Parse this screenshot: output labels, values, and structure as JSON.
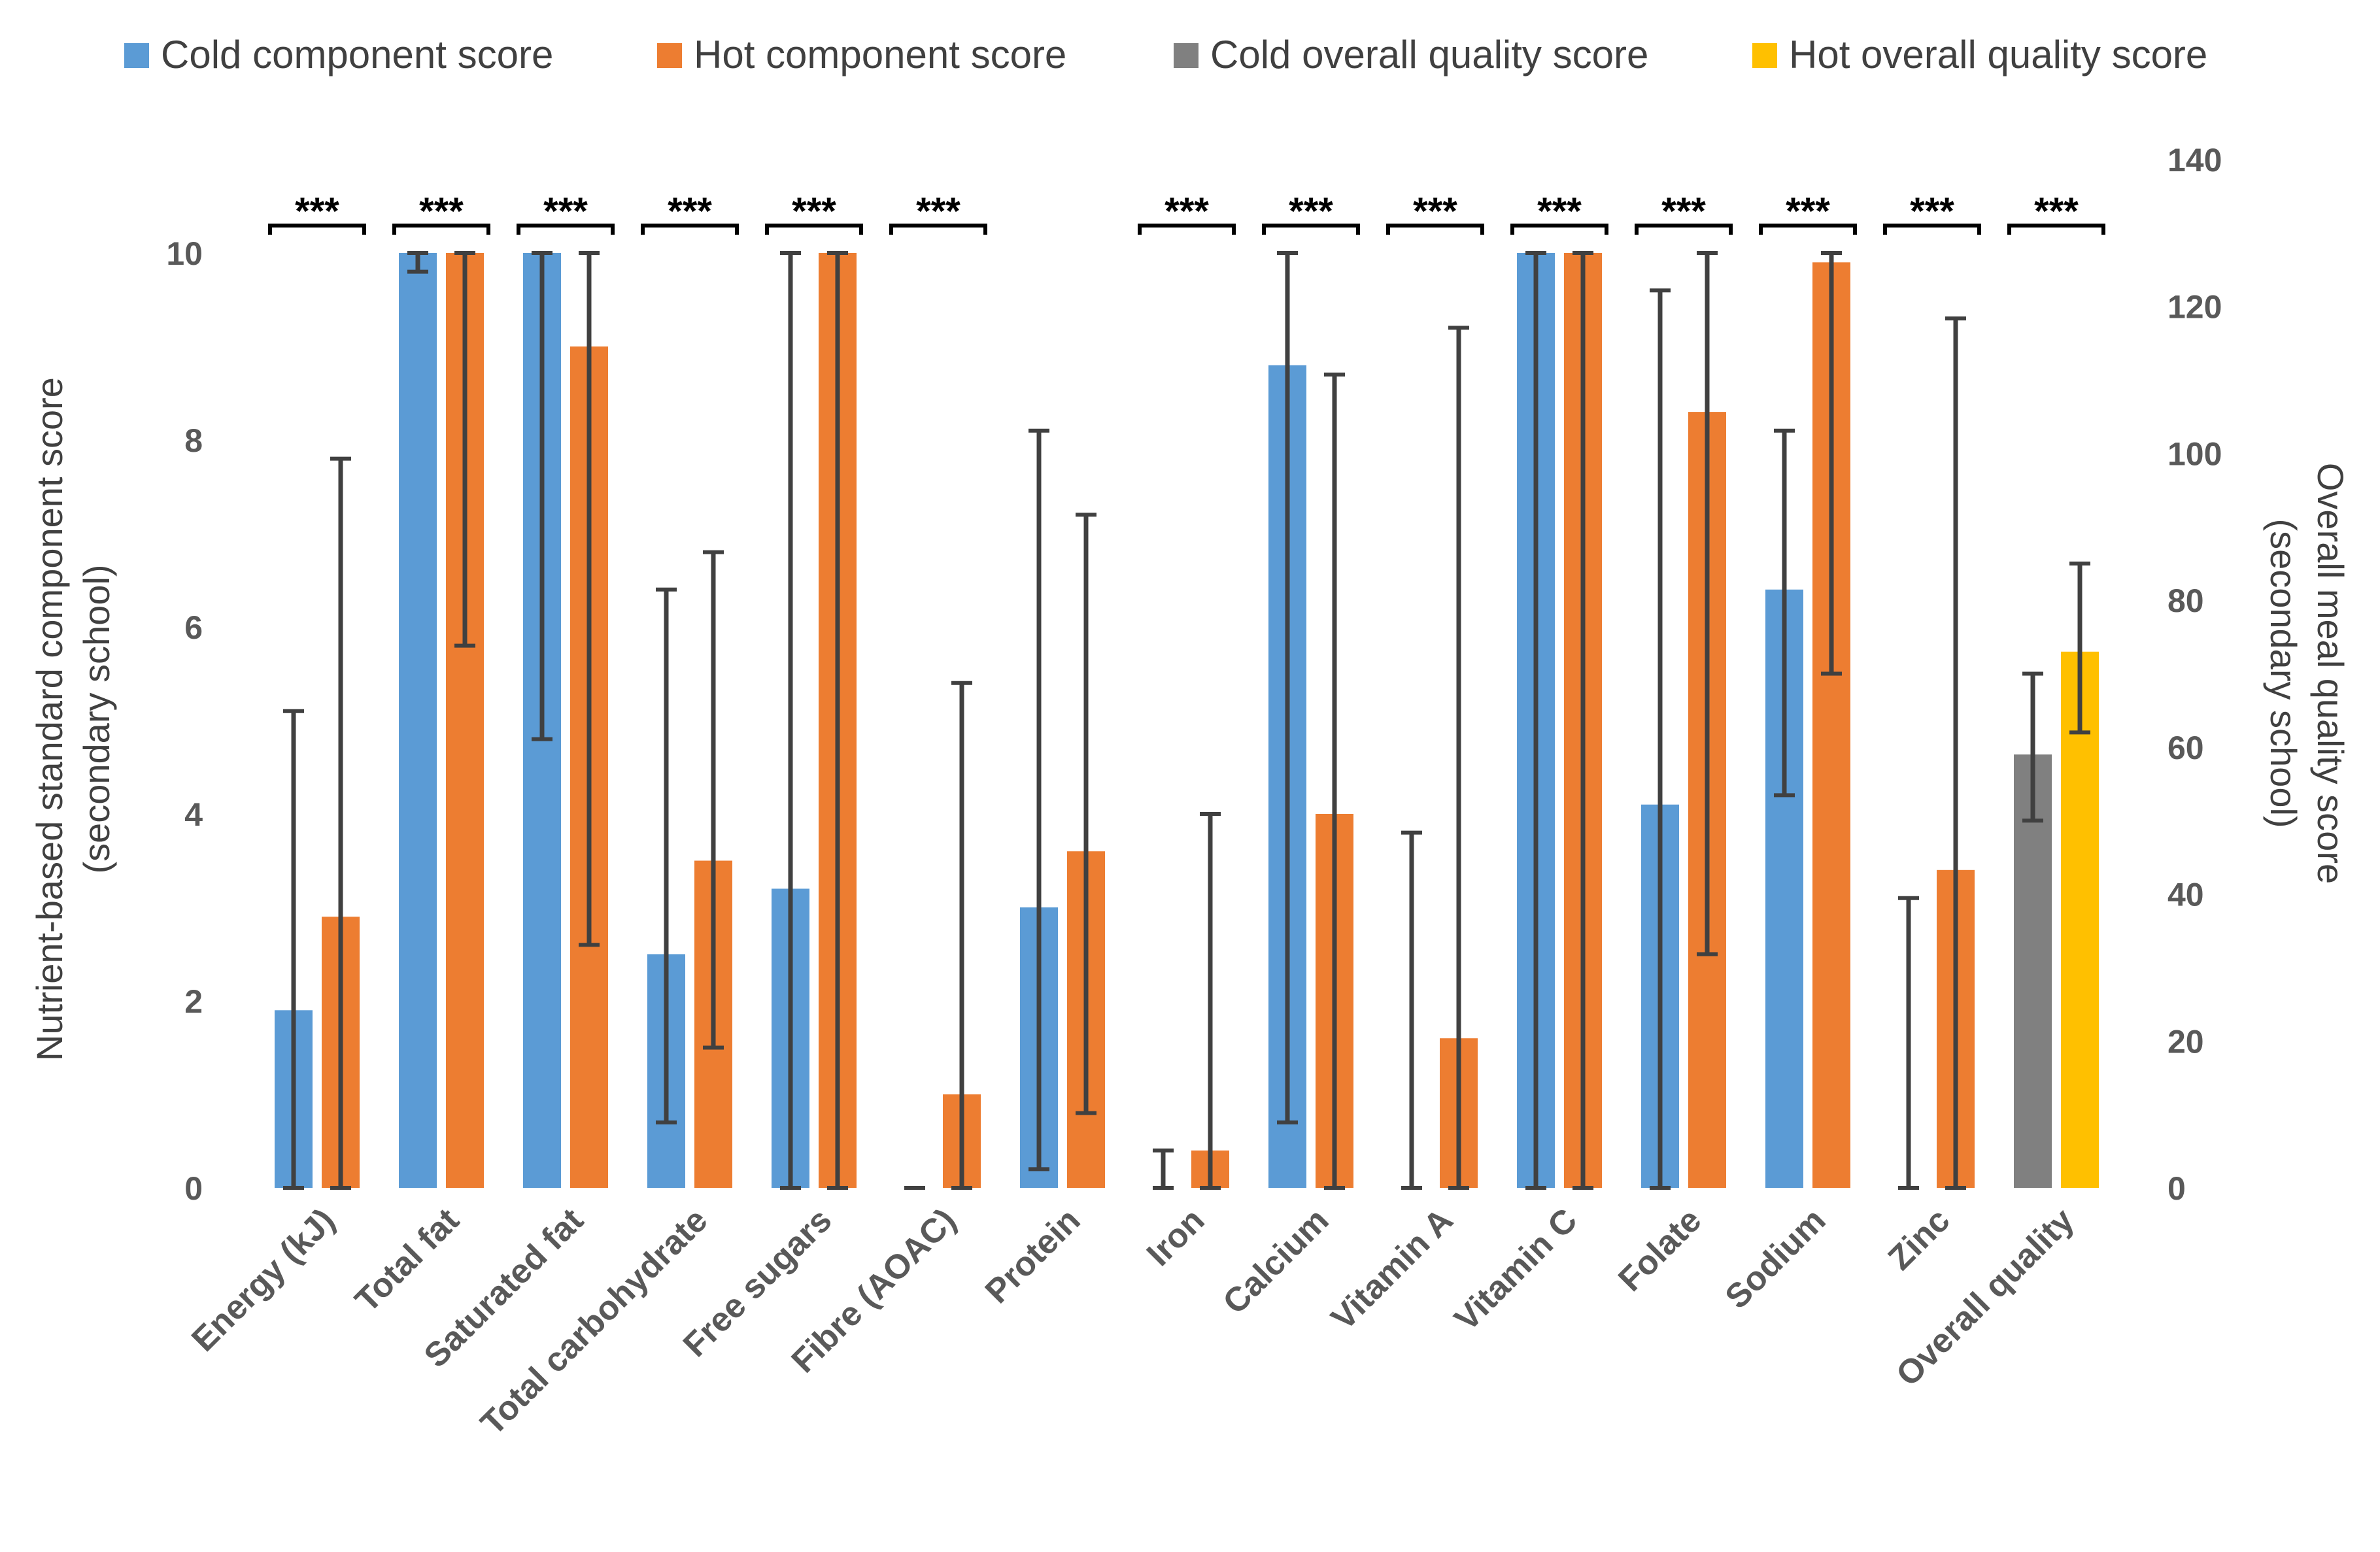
{
  "chart_data": {
    "type": "bar",
    "categories": [
      "Energy (kJ)",
      "Total fat",
      "Saturated fat",
      "Total carbohydrate",
      "Free sugars",
      "Fibre (AOAC)",
      "Protein",
      "Iron",
      "Calcium",
      "Vitamin A",
      "Vitamin C",
      "Folate",
      "Sodium",
      "Zinc",
      "Overall quality"
    ],
    "series": [
      {
        "name": "Cold component score",
        "color": "#5B9BD5",
        "axis": "left",
        "values": [
          1.9,
          10.0,
          10.0,
          2.5,
          3.2,
          0.0,
          3.0,
          0.0,
          8.8,
          0.0,
          10.0,
          4.1,
          6.4,
          0.0,
          null
        ],
        "err_low": [
          0.0,
          9.8,
          4.8,
          0.7,
          0.0,
          0.0,
          0.2,
          0.0,
          0.7,
          0.0,
          0.0,
          0.0,
          4.2,
          0.0,
          null
        ],
        "err_high": [
          5.1,
          10.0,
          10.0,
          6.4,
          10.0,
          0.0,
          8.1,
          0.4,
          10.0,
          3.8,
          10.0,
          9.6,
          8.1,
          3.1,
          null
        ]
      },
      {
        "name": "Hot component score",
        "color": "#ED7D31",
        "axis": "left",
        "values": [
          2.9,
          10.0,
          9.0,
          3.5,
          10.0,
          1.0,
          3.6,
          0.4,
          4.0,
          1.6,
          10.0,
          8.3,
          9.9,
          3.4,
          null
        ],
        "err_low": [
          0.0,
          5.8,
          2.6,
          1.5,
          0.0,
          0.0,
          0.8,
          0.0,
          0.0,
          0.0,
          0.0,
          2.5,
          5.5,
          0.0,
          null
        ],
        "err_high": [
          7.8,
          10.0,
          10.0,
          6.8,
          10.0,
          5.4,
          7.2,
          4.0,
          8.7,
          9.2,
          10.0,
          10.0,
          10.0,
          9.3,
          null
        ]
      },
      {
        "name": "Cold overall quality score",
        "color": "#808080",
        "axis": "right",
        "values": [
          null,
          null,
          null,
          null,
          null,
          null,
          null,
          null,
          null,
          null,
          null,
          null,
          null,
          null,
          59
        ],
        "err_low": [
          null,
          null,
          null,
          null,
          null,
          null,
          null,
          null,
          null,
          null,
          null,
          null,
          null,
          null,
          50
        ],
        "err_high": [
          null,
          null,
          null,
          null,
          null,
          null,
          null,
          null,
          null,
          null,
          null,
          null,
          null,
          null,
          70
        ]
      },
      {
        "name": "Hot overall quality score",
        "color": "#FFC000",
        "axis": "right",
        "values": [
          null,
          null,
          null,
          null,
          null,
          null,
          null,
          null,
          null,
          null,
          null,
          null,
          null,
          null,
          73
        ],
        "err_low": [
          null,
          null,
          null,
          null,
          null,
          null,
          null,
          null,
          null,
          null,
          null,
          null,
          null,
          null,
          62
        ],
        "err_high": [
          null,
          null,
          null,
          null,
          null,
          null,
          null,
          null,
          null,
          null,
          null,
          null,
          null,
          null,
          85
        ]
      }
    ],
    "significance": [
      "***",
      "***",
      "***",
      "***",
      "***",
      "***",
      "",
      "***",
      "***",
      "***",
      "***",
      "***",
      "***",
      "***",
      "***"
    ],
    "ylabel": "Nutrient-based standard component score (secondary school)",
    "ylabel_lines": [
      "Nutrient-based standard component score",
      "(secondary school)"
    ],
    "y2label": "Overall meal quality score (secondary school)",
    "y2label_lines": [
      "Overall meal quality score",
      "(secondary school)"
    ],
    "ylim": [
      0,
      11
    ],
    "y2lim": [
      0,
      140
    ],
    "yticks": [
      "0",
      "2",
      "4",
      "6",
      "8",
      "10"
    ],
    "y2ticks": [
      "0",
      "20",
      "40",
      "60",
      "80",
      "100",
      "120",
      "140"
    ],
    "legend_position": "top",
    "grid": false
  }
}
